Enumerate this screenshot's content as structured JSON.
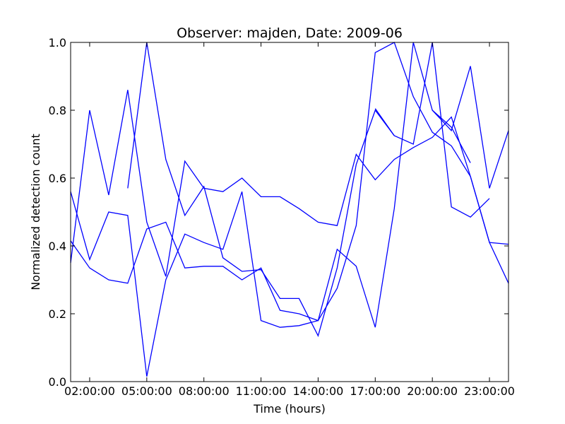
{
  "chart_data": {
    "type": "line",
    "title": "Observer: majden, Date: 2009-06",
    "xlabel": "Time (hours)",
    "ylabel": "Normalized detection count",
    "xlim": [
      1,
      24
    ],
    "ylim": [
      0.0,
      1.0
    ],
    "x_ticks": [
      {
        "value": 2,
        "label": "02:00:00"
      },
      {
        "value": 5,
        "label": "05:00:00"
      },
      {
        "value": 8,
        "label": "08:00:00"
      },
      {
        "value": 11,
        "label": "11:00:00"
      },
      {
        "value": 14,
        "label": "14:00:00"
      },
      {
        "value": 17,
        "label": "17:00:00"
      },
      {
        "value": 20,
        "label": "20:00:00"
      },
      {
        "value": 23,
        "label": "23:00:00"
      }
    ],
    "y_ticks": [
      {
        "value": 0.0,
        "label": "0.0"
      },
      {
        "value": 0.2,
        "label": "0.2"
      },
      {
        "value": 0.4,
        "label": "0.4"
      },
      {
        "value": 0.6,
        "label": "0.6"
      },
      {
        "value": 0.8,
        "label": "0.8"
      },
      {
        "value": 1.0,
        "label": "1.0"
      }
    ],
    "grid": false,
    "line_color": "#0000ff",
    "series": [
      {
        "points": [
          [
            1,
            0.35
          ],
          [
            2,
            0.8
          ],
          [
            3,
            0.55
          ],
          [
            4,
            0.86
          ],
          [
            5,
            0.47
          ],
          [
            6,
            0.31
          ],
          [
            7,
            0.65
          ],
          [
            8,
            0.57
          ],
          [
            9,
            0.56
          ],
          [
            10,
            0.6
          ],
          [
            11,
            0.545
          ],
          [
            12,
            0.545
          ],
          [
            13,
            0.51
          ],
          [
            14,
            0.47
          ],
          [
            15,
            0.46
          ],
          [
            16,
            0.67
          ],
          [
            17,
            0.595
          ],
          [
            18,
            0.655
          ],
          [
            19,
            0.69
          ],
          [
            20,
            0.72
          ],
          [
            21,
            0.78
          ],
          [
            22,
            0.605
          ],
          [
            23,
            0.41
          ],
          [
            24,
            0.29
          ]
        ]
      },
      {
        "points": [
          [
            1,
            0.415
          ],
          [
            2,
            0.335
          ],
          [
            3,
            0.3
          ],
          [
            4,
            0.29
          ],
          [
            5,
            0.45
          ],
          [
            6,
            0.47
          ],
          [
            7,
            0.335
          ],
          [
            8,
            0.34
          ],
          [
            9,
            0.34
          ],
          [
            10,
            0.3
          ],
          [
            11,
            0.335
          ],
          [
            12,
            0.21
          ],
          [
            13,
            0.2
          ],
          [
            14,
            0.18
          ],
          [
            15,
            0.39
          ],
          [
            16,
            0.34
          ],
          [
            17,
            0.16
          ],
          [
            18,
            0.51
          ],
          [
            19,
            1.0
          ],
          [
            20,
            0.8
          ],
          [
            21,
            0.74
          ],
          [
            22,
            0.93
          ],
          [
            23,
            0.57
          ],
          [
            24,
            0.74
          ]
        ]
      },
      {
        "points": [
          [
            1,
            0.56
          ],
          [
            2,
            0.36
          ],
          [
            3,
            0.5
          ],
          [
            4,
            0.49
          ],
          [
            5,
            0.015
          ],
          [
            6,
            0.3
          ],
          [
            7,
            0.435
          ],
          [
            8,
            0.41
          ],
          [
            9,
            0.39
          ],
          [
            10,
            0.56
          ],
          [
            11,
            0.18
          ],
          [
            12,
            0.16
          ],
          [
            13,
            0.165
          ],
          [
            14,
            0.18
          ],
          [
            15,
            0.275
          ],
          [
            16,
            0.46
          ],
          [
            17,
            0.97
          ],
          [
            18,
            1.0
          ],
          [
            19,
            0.84
          ],
          [
            20,
            0.735
          ],
          [
            21,
            0.695
          ],
          [
            22,
            0.605
          ],
          [
            23,
            0.41
          ],
          [
            24,
            0.405
          ]
        ]
      },
      {
        "points": [
          [
            4,
            0.57
          ],
          [
            5,
            1.0
          ],
          [
            6,
            0.655
          ],
          [
            7,
            0.49
          ],
          [
            8,
            0.575
          ],
          [
            9,
            0.365
          ],
          [
            10,
            0.325
          ],
          [
            11,
            0.33
          ],
          [
            12,
            0.245
          ],
          [
            13,
            0.245
          ],
          [
            14,
            0.135
          ],
          [
            15,
            0.335
          ],
          [
            16,
            0.64
          ],
          [
            17,
            0.8
          ],
          [
            18,
            0.725
          ],
          [
            19,
            0.7
          ],
          [
            20,
            1.0
          ],
          [
            21,
            0.515
          ],
          [
            22,
            0.485
          ],
          [
            23,
            0.54
          ]
        ]
      },
      {
        "points": [
          [
            17,
            0.805
          ],
          [
            18,
            0.725
          ]
        ]
      },
      {
        "points": [
          [
            20,
            0.8
          ],
          [
            21,
            0.75
          ],
          [
            22,
            0.645
          ]
        ]
      }
    ]
  }
}
